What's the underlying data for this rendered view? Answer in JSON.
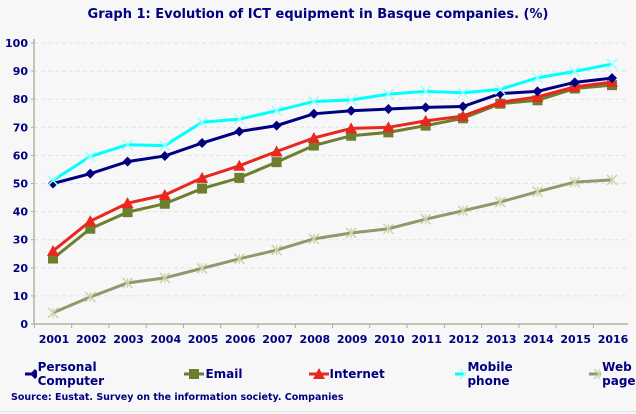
{
  "chart_data": {
    "type": "line",
    "title": "Graph 1: Evolution of ICT equipment in Basque companies. (%)",
    "source": "Source: Eustat. Survey on the information society. Companies",
    "categories": [
      "2001",
      "2002",
      "2003",
      "2004",
      "2005",
      "2006",
      "2007",
      "2008",
      "2009",
      "2010",
      "2011",
      "2012",
      "2013",
      "2014",
      "2015",
      "2016"
    ],
    "ylim": [
      0,
      100
    ],
    "yticks": [
      0,
      10,
      20,
      30,
      40,
      50,
      60,
      70,
      80,
      90,
      100
    ],
    "grid": true,
    "legend_position": "bottom",
    "series": [
      {
        "name": "Personal Computer",
        "color": "#000080",
        "marker": "diamond",
        "values": [
          50,
          53.5,
          57.8,
          59.8,
          64.4,
          68.5,
          70.6,
          74.8,
          75.9,
          76.5,
          77.1,
          77.4,
          82,
          82.8,
          86,
          87.5
        ]
      },
      {
        "name": "Email",
        "color": "#6b7f2e",
        "marker": "square",
        "values": [
          23.3,
          33.9,
          39.8,
          42.8,
          48.2,
          52,
          57.6,
          63.5,
          67,
          68.2,
          70.6,
          73.2,
          78.4,
          79.6,
          83.8,
          85
        ]
      },
      {
        "name": "Internet",
        "color": "#e8281e",
        "marker": "triangle",
        "values": [
          26,
          36.6,
          43,
          45.9,
          52,
          56.3,
          61.4,
          66.2,
          69.6,
          70,
          72.3,
          74,
          78.9,
          80.8,
          84.4,
          86.1
        ]
      },
      {
        "name": "Mobile phone",
        "color": "#00ffff",
        "marker": "x",
        "values": [
          51.1,
          59.6,
          63.8,
          63.5,
          71.8,
          72.9,
          75.9,
          79.2,
          79.7,
          81.8,
          82.8,
          82.3,
          83.5,
          87.6,
          89.9,
          92.5
        ]
      },
      {
        "name": "Web page",
        "color": "#8c9a6e",
        "marker": "star",
        "values": [
          4,
          9.6,
          14.6,
          16.4,
          19.8,
          23.2,
          26.3,
          30.3,
          32.4,
          33.9,
          37.3,
          40.3,
          43.4,
          47.1,
          50.5,
          51.3
        ]
      }
    ]
  }
}
